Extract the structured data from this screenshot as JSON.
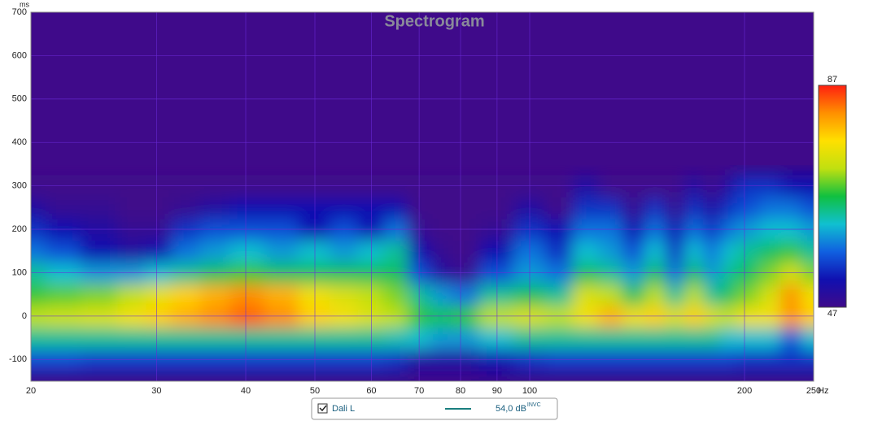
{
  "chart_data": {
    "type": "heatmap",
    "title": "Spectrogram",
    "x_unit": "Hz",
    "y_unit": "ms",
    "x": [
      20,
      22,
      25,
      28,
      30,
      33,
      36,
      40,
      45,
      50,
      55,
      60,
      65,
      70,
      75,
      80,
      90,
      100,
      110,
      120,
      130,
      140,
      150,
      160,
      170,
      180,
      190,
      200,
      220,
      230,
      250
    ],
    "y": [
      -100,
      -50,
      0,
      50,
      100,
      150,
      200,
      250,
      300
    ],
    "z": [
      [
        56,
        56,
        55,
        55,
        55,
        55,
        55,
        55,
        55,
        55,
        55,
        55,
        54,
        50,
        50,
        50,
        52,
        54,
        55,
        55,
        55,
        55,
        55,
        55,
        55,
        55,
        55,
        54,
        54,
        54,
        54
      ],
      [
        64,
        64,
        64,
        64,
        64,
        64,
        64,
        64,
        64,
        64,
        64,
        64,
        63,
        62,
        60,
        60,
        62,
        64,
        64,
        64,
        64,
        64,
        64,
        64,
        64,
        64,
        62,
        62,
        62,
        56,
        62
      ],
      [
        72,
        73,
        74,
        76,
        78,
        80,
        82,
        84,
        82,
        78,
        76,
        74,
        72,
        68,
        66,
        68,
        72,
        74,
        72,
        76,
        80,
        76,
        78,
        74,
        78,
        74,
        72,
        76,
        76,
        82,
        78
      ],
      [
        68,
        69,
        70,
        72,
        75,
        78,
        80,
        82,
        80,
        76,
        74,
        72,
        70,
        64,
        60,
        58,
        64,
        66,
        64,
        74,
        72,
        66,
        72,
        64,
        72,
        64,
        66,
        70,
        74,
        82,
        76
      ],
      [
        64,
        62,
        60,
        60,
        62,
        64,
        66,
        68,
        66,
        66,
        66,
        66,
        66,
        56,
        50,
        48,
        56,
        60,
        58,
        66,
        64,
        60,
        66,
        58,
        66,
        60,
        64,
        66,
        70,
        74,
        70
      ],
      [
        58,
        56,
        52,
        50,
        52,
        58,
        60,
        62,
        60,
        62,
        60,
        62,
        64,
        52,
        48,
        47,
        52,
        58,
        54,
        62,
        60,
        56,
        62,
        54,
        62,
        58,
        62,
        64,
        66,
        68,
        64
      ],
      [
        54,
        52,
        50,
        48,
        48,
        54,
        56,
        56,
        56,
        52,
        56,
        52,
        58,
        48,
        47,
        47,
        48,
        54,
        52,
        58,
        58,
        52,
        58,
        52,
        58,
        54,
        58,
        60,
        62,
        62,
        60
      ],
      [
        50,
        48,
        48,
        47,
        47,
        48,
        50,
        52,
        52,
        52,
        52,
        52,
        52,
        47,
        47,
        47,
        47,
        50,
        47,
        54,
        54,
        48,
        54,
        48,
        54,
        50,
        54,
        56,
        58,
        58,
        56
      ],
      [
        47,
        47,
        47,
        47,
        47,
        47,
        47,
        47,
        47,
        47,
        47,
        47,
        47,
        47,
        47,
        47,
        47,
        47,
        47,
        50,
        47,
        47,
        47,
        47,
        50,
        47,
        50,
        54,
        54,
        52,
        52
      ]
    ],
    "zlim": [
      47,
      87
    ],
    "zticks": [
      47,
      87
    ],
    "colormap": [
      "#3f0a8a",
      "#1010b0",
      "#1060e0",
      "#10c0d0",
      "#10c040",
      "#c0e010",
      "#ffe000",
      "#ff9000",
      "#ff2010"
    ],
    "xlim": [
      20,
      250
    ],
    "ylim": [
      -150,
      700
    ],
    "log_x": true,
    "xticks": [
      20,
      30,
      40,
      50,
      60,
      70,
      80,
      90,
      100,
      200,
      250
    ],
    "yticks": [
      -100,
      0,
      100,
      200,
      300,
      400,
      500,
      600,
      700
    ],
    "grid": true,
    "legend": {
      "name": "Dali L",
      "label": "54,0 dB",
      "superscript": "INVC",
      "color": "#1a7f7f"
    }
  }
}
